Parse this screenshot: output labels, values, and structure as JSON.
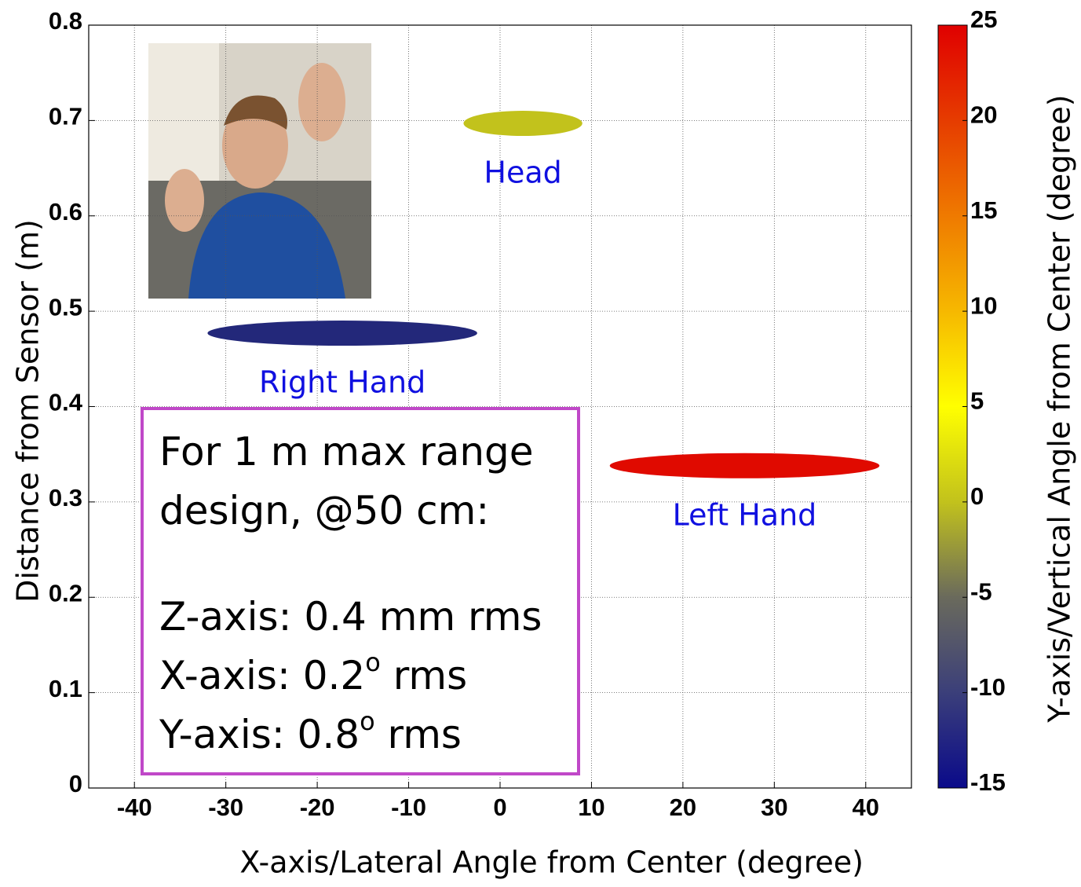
{
  "chart_data": {
    "type": "blob",
    "xlabel": "X-axis/Lateral Angle from Center (degree)",
    "ylabel": "Distance from Sensor (m)",
    "xlim": [
      -45,
      45
    ],
    "xticks": [
      -40,
      -30,
      -20,
      -10,
      0,
      10,
      20,
      30,
      40
    ],
    "ylim": [
      0,
      0.8
    ],
    "yticks": [
      0,
      0.1,
      0.2,
      0.3,
      0.4,
      0.5,
      0.6,
      0.7,
      0.8
    ],
    "grid": true,
    "blobs": [
      {
        "label": "Head",
        "xmin": -4,
        "xmax": 9,
        "y": 0.697,
        "color": "#c2c21c"
      },
      {
        "label": "Right Hand",
        "xmin": -32,
        "xmax": -2.5,
        "y": 0.477,
        "color": "#23287a"
      },
      {
        "label": "Left Hand",
        "xmin": 12,
        "xmax": 41.5,
        "y": 0.338,
        "color": "#e00a00"
      }
    ],
    "colorbar": {
      "label": "Y-axis/Vertical Angle from Center (degree)",
      "lim": [
        -15,
        25
      ],
      "ticks": [
        -15,
        -10,
        -5,
        0,
        5,
        10,
        15,
        20,
        25
      ],
      "colors": [
        "#0a0a8a",
        "#3b3f7a",
        "#6a6a5c",
        "#c2c21c",
        "#ffff00",
        "#f6b800",
        "#ef7a00",
        "#e63c00",
        "#e00000"
      ]
    },
    "note": {
      "color": "#c048c8",
      "lines": [
        {
          "text": "For 1 m max range"
        },
        {
          "text": "design, @50 cm:"
        },
        {
          "text": "Z-axis: 0.4 mm rms"
        },
        {
          "text": "X-axis: 0.2",
          "sup": "o",
          "after": " rms"
        },
        {
          "text": "Y-axis: 0.8",
          "sup": "o",
          "after": " rms"
        }
      ]
    }
  }
}
